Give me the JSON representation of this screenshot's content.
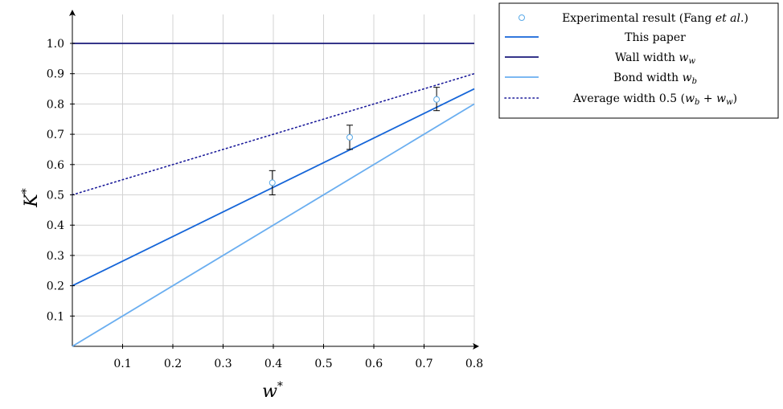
{
  "chart_data": {
    "type": "line",
    "xlabel": "w*",
    "ylabel": "K*",
    "xlim": [
      0,
      0.8
    ],
    "ylim": [
      0,
      1.0
    ],
    "xticks": [
      "0.1",
      "0.2",
      "0.3",
      "0.4",
      "0.5",
      "0.6",
      "0.7",
      "0.8"
    ],
    "yticks": [
      "0.1",
      "0.2",
      "0.3",
      "0.4",
      "0.5",
      "0.6",
      "0.7",
      "0.8",
      "0.9",
      "1.0"
    ],
    "grid": true,
    "legend_position": "outside-top-right",
    "series": [
      {
        "name": "This paper",
        "kind": "line",
        "color": "#1565d8",
        "style": "solid",
        "x": [
          0,
          0.8
        ],
        "y": [
          0.2,
          0.85
        ]
      },
      {
        "name": "Wall width w_w",
        "kind": "line",
        "color": "#1a1a7a",
        "style": "solid",
        "x": [
          0,
          0.8
        ],
        "y": [
          1.0,
          1.0
        ]
      },
      {
        "name": "Bond width w_b",
        "kind": "line",
        "color": "#6aaef0",
        "style": "solid",
        "x": [
          0,
          0.8
        ],
        "y": [
          0.0,
          0.8
        ]
      },
      {
        "name": "Average width 0.5 (w_b + w_w)",
        "kind": "line",
        "color": "#1a1a9a",
        "style": "dotted",
        "x": [
          0,
          0.8
        ],
        "y": [
          0.5,
          0.9
        ]
      }
    ],
    "scatter": {
      "name": "Experimental result (Fang et al.)",
      "color": "#5aaae8",
      "points": [
        {
          "x": 0.398,
          "y": 0.54,
          "ylow": 0.5,
          "yhigh": 0.58
        },
        {
          "x": 0.552,
          "y": 0.69,
          "ylow": 0.65,
          "yhigh": 0.73
        },
        {
          "x": 0.725,
          "y": 0.815,
          "ylow": 0.778,
          "yhigh": 0.855
        }
      ]
    },
    "legend": [
      {
        "label": "Experimental result (Fang ",
        "italic": "et al.",
        "tail": ")",
        "marker": "circle"
      },
      {
        "label": "This paper",
        "marker": "line-blue"
      },
      {
        "label": "Wall width ",
        "italic": "w",
        "sub": "w",
        "marker": "line-navy"
      },
      {
        "label": "Bond width ",
        "italic": "w",
        "sub": "b",
        "marker": "line-light"
      },
      {
        "label": "Average width 0.5 (",
        "formula": true,
        "marker": "dotted"
      }
    ]
  }
}
